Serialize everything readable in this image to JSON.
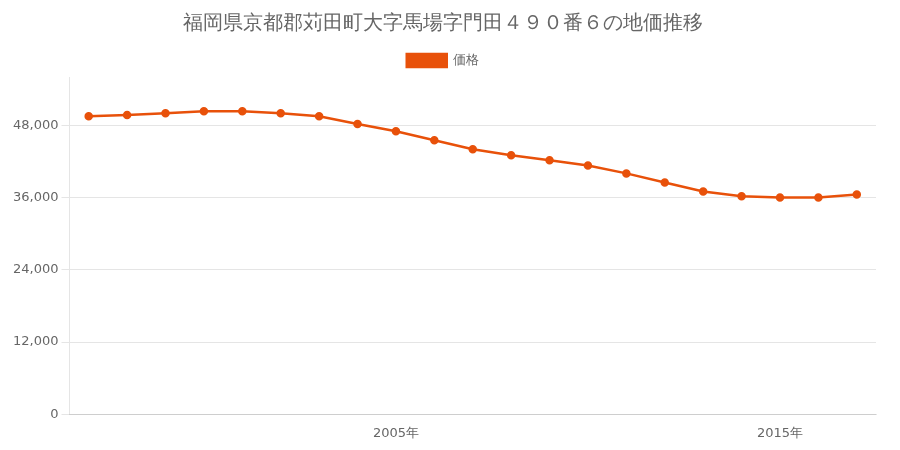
{
  "chart_data": {
    "type": "line",
    "title": "福岡県京都郡苅田町大字馬場字門田４９０番６の地価推移",
    "x": [
      1997,
      1998,
      1999,
      2000,
      2001,
      2002,
      2003,
      2004,
      2005,
      2006,
      2007,
      2008,
      2009,
      2010,
      2011,
      2012,
      2013,
      2014,
      2015,
      2016,
      2017
    ],
    "series": [
      {
        "name": "価格",
        "color": "#e8510a",
        "marker": "circle",
        "line_style": "solid",
        "values": [
          49500,
          49700,
          50000,
          50300,
          50300,
          50000,
          49500,
          48200,
          47000,
          45500,
          44000,
          43000,
          42200,
          41300,
          40000,
          38500,
          37000,
          36200,
          36000,
          36000,
          36500
        ]
      }
    ],
    "xlim": [
      1996.5,
      2017.5
    ],
    "xticks": [
      {
        "value": 2005,
        "label": "2005年"
      },
      {
        "value": 2015,
        "label": "2015年"
      }
    ],
    "ylim": [
      0,
      56000
    ],
    "yticks": [
      0,
      {
        "value": 12000,
        "label": "12,000"
      },
      {
        "value": 24000,
        "label": "24,000"
      },
      {
        "value": 36000,
        "label": "36,000"
      },
      {
        "value": 48000,
        "label": "48,000"
      }
    ],
    "grid": "y",
    "legend": "top"
  }
}
